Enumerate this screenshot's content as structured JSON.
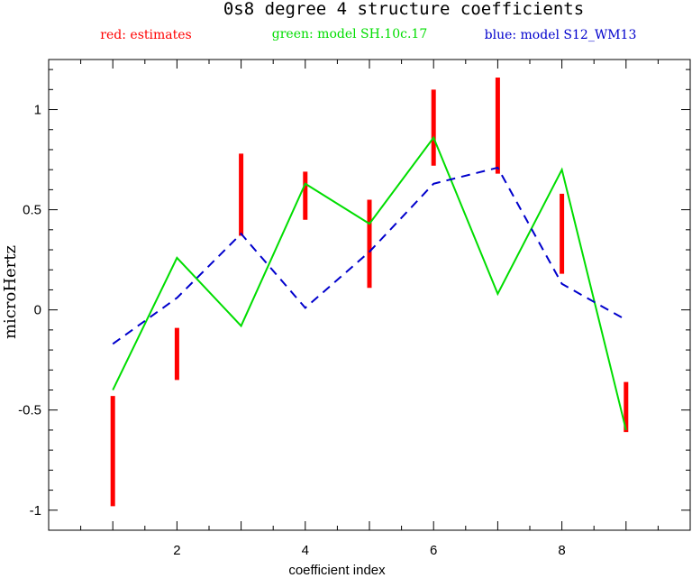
{
  "chart_data": {
    "type": "line",
    "title": "0s8 degree 4 structure coefficients",
    "xlabel": "coefficient index",
    "ylabel": "microHertz",
    "xlim": [
      0,
      10
    ],
    "ylim": [
      -1.1,
      1.25
    ],
    "x_ticks": [
      2,
      4,
      6,
      8
    ],
    "y_ticks": [
      1,
      0.5,
      0,
      -0.5,
      -1
    ],
    "y_tick_labels": [
      "1",
      "0.5",
      "0",
      "-0.5",
      "-1"
    ],
    "legend": [
      {
        "text": "red: estimates",
        "color": "#ff0000"
      },
      {
        "text": "green: model SH.10c.17",
        "color": "#00dd00"
      },
      {
        "text": "blue: model S12_WM13",
        "color": "#0000cc"
      }
    ],
    "estimates": {
      "color": "#ff0000",
      "bars": [
        {
          "x": 1,
          "low": -0.98,
          "high": -0.43
        },
        {
          "x": 2,
          "low": -0.35,
          "high": -0.09
        },
        {
          "x": 3,
          "low": 0.37,
          "high": 0.78
        },
        {
          "x": 4,
          "low": 0.45,
          "high": 0.69
        },
        {
          "x": 5,
          "low": 0.11,
          "high": 0.55
        },
        {
          "x": 6,
          "low": 0.72,
          "high": 1.1
        },
        {
          "x": 7,
          "low": 0.68,
          "high": 1.16
        },
        {
          "x": 8,
          "low": 0.18,
          "high": 0.58
        },
        {
          "x": 9,
          "low": -0.61,
          "high": -0.36
        }
      ]
    },
    "series": [
      {
        "color": "#00dd00",
        "style": "solid",
        "x": [
          1,
          2,
          3,
          4,
          5,
          6,
          7,
          8,
          9
        ],
        "values": [
          -0.4,
          0.26,
          -0.08,
          0.63,
          0.43,
          0.86,
          0.08,
          0.7,
          -0.6
        ]
      },
      {
        "color": "#0000cc",
        "style": "dashed",
        "x": [
          1,
          2,
          3,
          4,
          5,
          6,
          7,
          8,
          9
        ],
        "values": [
          -0.17,
          0.06,
          0.38,
          0.01,
          0.29,
          0.63,
          0.71,
          0.13,
          -0.05
        ]
      }
    ],
    "grid": false,
    "legend_position": "top"
  }
}
